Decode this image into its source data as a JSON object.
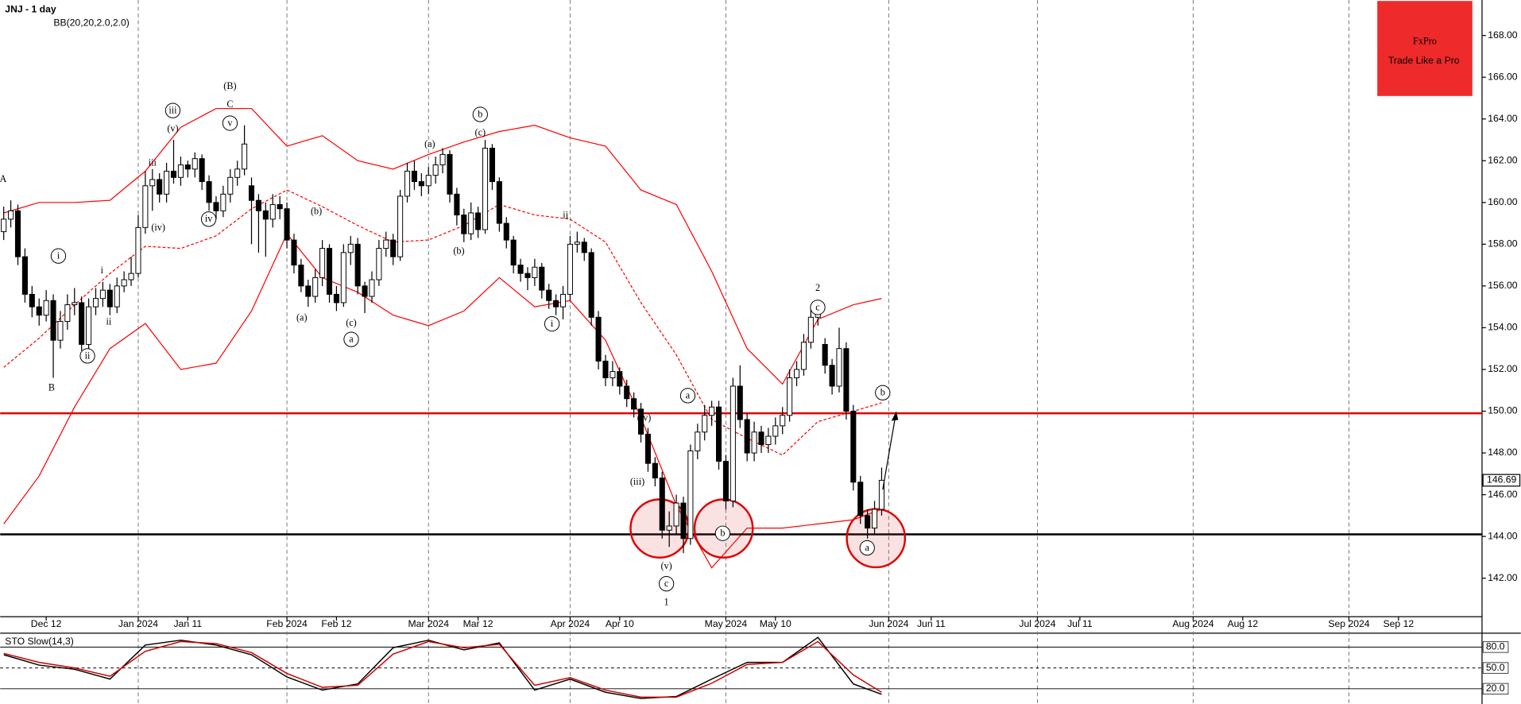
{
  "chart_data": {
    "type": "candlestick",
    "title": "JNJ - 1 day",
    "subtitle": "BB(20,20,2.0,2.0)",
    "subtitle_color": "#e00000",
    "up_color": "#ffffff",
    "down_color": "#000000",
    "candles": [
      [
        158.6,
        159.8,
        158.2,
        159.2
      ],
      [
        159.2,
        160.1,
        158.8,
        159.6
      ],
      [
        159.6,
        159.9,
        157.0,
        157.4
      ],
      [
        157.4,
        157.8,
        155.2,
        155.6
      ],
      [
        155.6,
        156.0,
        154.5,
        155.0
      ],
      [
        155.0,
        155.4,
        154.1,
        154.6
      ],
      [
        154.6,
        155.8,
        154.3,
        155.3
      ],
      [
        155.3,
        155.6,
        151.6,
        153.4
      ],
      [
        153.4,
        154.8,
        153.0,
        154.3
      ],
      [
        154.3,
        155.6,
        153.9,
        155.1
      ],
      [
        155.1,
        155.9,
        154.6,
        155.2
      ],
      [
        155.2,
        155.5,
        152.9,
        153.2
      ],
      [
        153.2,
        155.4,
        152.9,
        155.0
      ],
      [
        155.0,
        155.9,
        154.6,
        155.4
      ],
      [
        155.4,
        156.2,
        155.0,
        155.8
      ],
      [
        155.8,
        156.1,
        154.6,
        155.0
      ],
      [
        155.0,
        156.4,
        154.7,
        156.0
      ],
      [
        156.0,
        156.7,
        155.7,
        156.3
      ],
      [
        156.3,
        157.4,
        156.0,
        156.6
      ],
      [
        156.6,
        159.4,
        156.4,
        158.8
      ],
      [
        158.8,
        161.5,
        158.5,
        160.8
      ],
      [
        160.8,
        161.6,
        159.6,
        161.1
      ],
      [
        161.1,
        161.4,
        160.0,
        160.4
      ],
      [
        160.4,
        161.9,
        160.0,
        161.5
      ],
      [
        161.5,
        163.0,
        160.9,
        161.2
      ],
      [
        161.2,
        162.2,
        160.8,
        161.8
      ],
      [
        161.8,
        162.0,
        161.2,
        161.6
      ],
      [
        161.6,
        162.4,
        161.2,
        162.1
      ],
      [
        162.1,
        162.3,
        160.6,
        161.0
      ],
      [
        161.0,
        161.3,
        159.6,
        160.0
      ],
      [
        160.0,
        160.3,
        159.2,
        159.6
      ],
      [
        159.6,
        160.8,
        159.3,
        160.4
      ],
      [
        160.4,
        161.6,
        160.0,
        161.2
      ],
      [
        161.2,
        162.0,
        160.8,
        161.6
      ],
      [
        161.6,
        163.7,
        161.3,
        162.8
      ],
      [
        160.8,
        161.2,
        158.0,
        160.1
      ],
      [
        160.1,
        160.4,
        157.6,
        159.6
      ],
      [
        159.6,
        160.0,
        157.4,
        159.2
      ],
      [
        159.2,
        160.4,
        158.8,
        159.9
      ],
      [
        159.9,
        160.3,
        159.2,
        159.7
      ],
      [
        159.7,
        160.0,
        157.8,
        158.2
      ],
      [
        158.2,
        158.5,
        156.6,
        157.0
      ],
      [
        157.0,
        157.3,
        155.7,
        156.0
      ],
      [
        156.0,
        156.3,
        155.0,
        155.5
      ],
      [
        155.5,
        156.8,
        155.2,
        156.4
      ],
      [
        156.4,
        158.2,
        156.0,
        157.8
      ],
      [
        157.8,
        158.0,
        155.2,
        155.6
      ],
      [
        155.6,
        156.0,
        154.8,
        155.2
      ],
      [
        155.2,
        158.0,
        155.0,
        157.6
      ],
      [
        157.6,
        158.4,
        157.0,
        158.0
      ],
      [
        158.0,
        158.3,
        155.6,
        156.0
      ],
      [
        156.0,
        156.2,
        154.7,
        155.5
      ],
      [
        155.5,
        156.7,
        155.2,
        156.3
      ],
      [
        156.3,
        158.2,
        156.0,
        157.8
      ],
      [
        157.8,
        158.6,
        157.4,
        158.2
      ],
      [
        158.2,
        158.5,
        157.0,
        157.4
      ],
      [
        157.4,
        160.6,
        157.2,
        160.3
      ],
      [
        160.3,
        161.9,
        160.0,
        161.5
      ],
      [
        161.5,
        162.0,
        160.6,
        161.0
      ],
      [
        161.0,
        161.4,
        160.3,
        160.8
      ],
      [
        160.8,
        161.7,
        160.4,
        161.3
      ],
      [
        161.3,
        162.2,
        160.9,
        161.8
      ],
      [
        161.8,
        162.6,
        161.4,
        162.3
      ],
      [
        162.3,
        162.5,
        160.0,
        160.4
      ],
      [
        160.4,
        160.7,
        158.9,
        159.4
      ],
      [
        159.4,
        159.7,
        158.1,
        158.5
      ],
      [
        158.5,
        160.0,
        158.2,
        159.5
      ],
      [
        159.5,
        159.8,
        158.3,
        158.7
      ],
      [
        158.7,
        163.0,
        158.5,
        162.6
      ],
      [
        162.6,
        162.8,
        160.6,
        161.0
      ],
      [
        161.0,
        161.2,
        158.6,
        159.0
      ],
      [
        159.0,
        159.3,
        157.8,
        158.2
      ],
      [
        158.2,
        158.4,
        156.6,
        157.0
      ],
      [
        157.0,
        157.3,
        156.2,
        156.6
      ],
      [
        156.6,
        156.9,
        155.8,
        156.4
      ],
      [
        156.4,
        157.3,
        156.0,
        156.9
      ],
      [
        156.9,
        157.1,
        155.4,
        155.8
      ],
      [
        155.8,
        156.1,
        154.9,
        155.3
      ],
      [
        155.3,
        155.6,
        154.6,
        155.0
      ],
      [
        155.0,
        156.0,
        154.4,
        155.6
      ],
      [
        155.6,
        158.4,
        155.3,
        158.0
      ],
      [
        158.0,
        158.6,
        157.6,
        158.1
      ],
      [
        158.1,
        158.3,
        157.2,
        157.6
      ],
      [
        157.6,
        157.8,
        154.1,
        154.5
      ],
      [
        154.5,
        154.8,
        152.0,
        152.4
      ],
      [
        152.4,
        152.7,
        151.2,
        151.6
      ],
      [
        151.6,
        152.4,
        151.2,
        151.9
      ],
      [
        151.9,
        152.1,
        150.8,
        151.2
      ],
      [
        151.2,
        151.5,
        150.2,
        150.6
      ],
      [
        150.6,
        150.9,
        149.7,
        150.1
      ],
      [
        150.1,
        150.4,
        148.5,
        148.9
      ],
      [
        148.9,
        149.2,
        147.1,
        147.5
      ],
      [
        147.5,
        147.8,
        146.4,
        146.8
      ],
      [
        146.8,
        147.1,
        143.9,
        144.3
      ],
      [
        144.3,
        145.2,
        143.5,
        144.5
      ],
      [
        144.5,
        146.0,
        144.1,
        145.6
      ],
      [
        145.6,
        145.9,
        143.2,
        143.9
      ],
      [
        143.9,
        148.4,
        143.6,
        148.1
      ],
      [
        148.1,
        149.4,
        147.7,
        149.0
      ],
      [
        149.0,
        150.3,
        148.6,
        149.8
      ],
      [
        149.8,
        150.5,
        149.3,
        150.2
      ],
      [
        150.2,
        150.5,
        147.2,
        147.6
      ],
      [
        147.6,
        147.9,
        145.3,
        145.7
      ],
      [
        145.7,
        151.6,
        145.4,
        151.2
      ],
      [
        151.2,
        152.2,
        149.2,
        149.6
      ],
      [
        149.6,
        149.9,
        147.6,
        148.0
      ],
      [
        148.0,
        149.5,
        147.6,
        149.0
      ],
      [
        149.0,
        149.3,
        148.0,
        148.4
      ],
      [
        148.4,
        149.2,
        148.0,
        148.8
      ],
      [
        148.8,
        149.7,
        148.4,
        149.3
      ],
      [
        149.3,
        150.2,
        148.9,
        149.8
      ],
      [
        149.8,
        152.0,
        149.5,
        151.6
      ],
      [
        151.6,
        152.4,
        151.2,
        152.0
      ],
      [
        152.0,
        153.7,
        151.7,
        153.3
      ],
      [
        153.3,
        154.9,
        153.0,
        154.5
      ],
      [
        154.5,
        155.3,
        154.1,
        155.0
      ],
      [
        153.2,
        153.5,
        151.8,
        152.2
      ],
      [
        152.2,
        152.5,
        150.8,
        151.2
      ],
      [
        151.2,
        154.0,
        150.9,
        153.0
      ],
      [
        153.0,
        153.3,
        149.6,
        150.0
      ],
      [
        150.0,
        150.3,
        146.2,
        146.6
      ],
      [
        146.6,
        146.9,
        144.6,
        145.0
      ],
      [
        145.0,
        145.3,
        143.9,
        144.4
      ],
      [
        144.4,
        145.7,
        144.1,
        145.3
      ],
      [
        145.3,
        147.3,
        145.0,
        146.69
      ]
    ],
    "bands": {
      "color": "#ff0000",
      "x": [
        0,
        5,
        10,
        15,
        20,
        25,
        30,
        35,
        40,
        45,
        50,
        55,
        60,
        65,
        70,
        75,
        80,
        85,
        90,
        95,
        100,
        105,
        110,
        115,
        120,
        124
      ],
      "upper": [
        159.5,
        160.0,
        160.0,
        160.1,
        161.5,
        163.6,
        164.5,
        164.5,
        162.7,
        163.2,
        162.0,
        161.6,
        162.3,
        162.9,
        163.4,
        163.7,
        163.1,
        162.7,
        160.6,
        159.9,
        156.7,
        153.0,
        151.3,
        154.4,
        155.1,
        155.4
      ],
      "middle": [
        152.1,
        153.5,
        155.1,
        156.6,
        157.9,
        157.8,
        158.4,
        159.7,
        160.6,
        159.8,
        158.9,
        158.1,
        158.2,
        158.9,
        159.9,
        159.4,
        159.2,
        158.1,
        155.2,
        152.7,
        149.6,
        148.7,
        147.9,
        149.5,
        150.0,
        150.4
      ],
      "lower": [
        144.6,
        146.9,
        150.2,
        153.0,
        154.2,
        152.0,
        152.3,
        154.8,
        158.5,
        156.4,
        155.7,
        154.6,
        154.1,
        154.8,
        156.4,
        155.0,
        155.3,
        153.4,
        149.7,
        145.5,
        142.5,
        144.4,
        144.4,
        144.6,
        144.8,
        145.3
      ]
    },
    "levels": [
      {
        "value": 149.9,
        "color": "#e00000"
      },
      {
        "value": 144.1,
        "color": "#000000"
      }
    ],
    "last_price": 146.69,
    "xlim": [
      0,
      209.3
    ],
    "xticks": [
      {
        "value": 19.5,
        "label": "Jan 2024"
      },
      {
        "value": 40.5,
        "label": "Feb 2024"
      },
      {
        "value": 60.5,
        "label": "Mar 2024"
      },
      {
        "value": 80.5,
        "label": "Apr 2024"
      },
      {
        "value": 102.5,
        "label": "May 2024"
      },
      {
        "value": 125.5,
        "label": "Jun 2024"
      },
      {
        "value": 146.5,
        "label": "Jul 2024"
      },
      {
        "value": 168.5,
        "label": "Aug 2024"
      },
      {
        "value": 190.5,
        "label": "Sep 2024"
      }
    ],
    "xminorticks": [
      {
        "value": 6.5,
        "label": "Dec 12"
      },
      {
        "value": 26.5,
        "label": "Jan 11"
      },
      {
        "value": 47.5,
        "label": "Feb 12"
      },
      {
        "value": 67.5,
        "label": "Mar 12"
      },
      {
        "value": 87.5,
        "label": "Apr 10"
      },
      {
        "value": 109.5,
        "label": "May 10"
      },
      {
        "value": 131.5,
        "label": "Jun 11"
      },
      {
        "value": 152.5,
        "label": "Jul 11"
      },
      {
        "value": 175.5,
        "label": "Aug 12"
      },
      {
        "value": 197.5,
        "label": "Sep 12"
      }
    ],
    "ylim": [
      140.2,
      169.7
    ],
    "yticks": [
      {
        "value": 142,
        "label": "142.00"
      },
      {
        "value": 144,
        "label": "144.00"
      },
      {
        "value": 146,
        "label": "146.00"
      },
      {
        "value": 148,
        "label": "148.00"
      },
      {
        "value": 150,
        "label": "150.00"
      },
      {
        "value": 152,
        "label": "152.00"
      },
      {
        "value": 154,
        "label": "154.00"
      },
      {
        "value": 156,
        "label": "156.00"
      },
      {
        "value": 158,
        "label": "158.00"
      },
      {
        "value": 160,
        "label": "160.00"
      },
      {
        "value": 162,
        "label": "162.00"
      },
      {
        "value": 164,
        "label": "164.00"
      },
      {
        "value": 166,
        "label": "166.00"
      },
      {
        "value": 168,
        "label": "168.00"
      }
    ],
    "annotations": [
      "A",
      "B",
      "i",
      "ii",
      "i",
      "ii",
      "iii",
      "iii",
      "(v)",
      "(iv)",
      "iv",
      "(B)",
      "C",
      "v",
      "(a)",
      "(b)",
      "(c)",
      "a",
      "(a)",
      "b",
      "(c)",
      "(b)",
      "ii",
      "i",
      "(iv)",
      "(iii)",
      "(v)",
      "c",
      "1",
      "a",
      "b",
      "2",
      "c",
      "b",
      "a"
    ],
    "logo": {
      "title": "FxPro",
      "subtitle": "Trade Like a Pro",
      "color": "#ee2a2a"
    },
    "oscillator": {
      "title": "STO Slow(14,3)",
      "x": [
        0,
        5,
        10,
        15,
        20,
        25,
        30,
        35,
        40,
        45,
        50,
        55,
        60,
        65,
        70,
        75,
        80,
        85,
        90,
        95,
        100,
        105,
        110,
        115,
        120,
        124
      ],
      "series": [
        {
          "color": "#000000",
          "values": [
            69,
            54,
            48,
            34,
            83,
            90,
            83,
            69,
            37,
            18,
            27,
            79,
            90,
            76,
            86,
            18,
            34,
            15,
            6,
            9,
            34,
            58,
            58,
            94,
            27,
            12
          ]
        },
        {
          "color": "#cc0000",
          "values": [
            71,
            58,
            50,
            38,
            74,
            88,
            85,
            72,
            42,
            22,
            25,
            70,
            88,
            79,
            84,
            25,
            36,
            18,
            8,
            8,
            28,
            55,
            58,
            88,
            40,
            15
          ]
        }
      ],
      "ylim": [
        0,
        100
      ],
      "yticks": [
        {
          "value": 80,
          "label": "80.0"
        },
        {
          "value": 50,
          "label": "50.0"
        },
        {
          "value": 20,
          "label": "20.0"
        }
      ]
    }
  }
}
